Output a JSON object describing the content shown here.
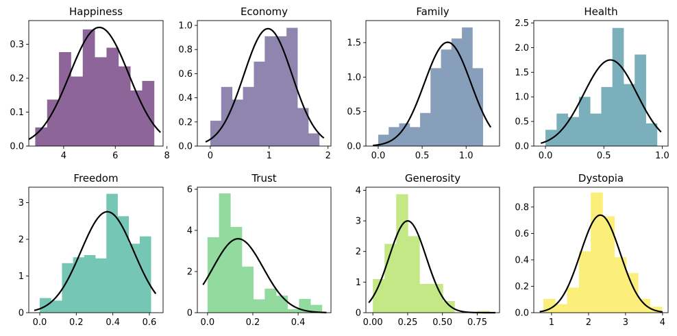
{
  "chart_data": [
    {
      "type": "bar",
      "title": "Happiness",
      "xlim": [
        2.65,
        7.85
      ],
      "ylim": [
        0,
        0.37
      ],
      "xticks": [
        4,
        6,
        8
      ],
      "xtick_labels": [
        "4",
        "6",
        "8"
      ],
      "yticks": [
        0,
        0.1,
        0.2,
        0.3
      ],
      "ytick_labels": [
        "0.0",
        "0.1",
        "0.2",
        "0.3"
      ],
      "bin_edges": [
        2.9,
        3.36,
        3.82,
        4.28,
        4.74,
        5.2,
        5.66,
        6.12,
        6.58,
        7.04,
        7.5
      ],
      "values": [
        0.055,
        0.137,
        0.277,
        0.205,
        0.344,
        0.262,
        0.29,
        0.235,
        0.164,
        0.192
      ],
      "normal_fit": {
        "mean": 5.38,
        "std": 1.14,
        "x_range": [
          2.65,
          7.75
        ]
      },
      "color": "#8e6598"
    },
    {
      "type": "bar",
      "title": "Economy",
      "xlim": [
        -0.22,
        2.05
      ],
      "ylim": [
        0,
        1.04
      ],
      "xticks": [
        0,
        1,
        2
      ],
      "xtick_labels": [
        "0",
        "1",
        "2"
      ],
      "yticks": [
        0,
        0.2,
        0.4,
        0.6,
        0.8,
        1.0
      ],
      "ytick_labels": [
        "0.0",
        "0.2",
        "0.4",
        "0.6",
        "0.8",
        "1.0"
      ],
      "bin_edges": [
        0.0,
        0.185,
        0.37,
        0.555,
        0.74,
        0.925,
        1.11,
        1.295,
        1.48,
        1.665,
        1.85
      ],
      "values": [
        0.21,
        0.49,
        0.385,
        0.49,
        0.7,
        0.91,
        0.91,
        0.98,
        0.315,
        0.105
      ],
      "normal_fit": {
        "mean": 0.98,
        "std": 0.41,
        "x_range": [
          -0.08,
          1.93
        ]
      },
      "color": "#8f86b0"
    },
    {
      "type": "bar",
      "title": "Family",
      "xlim": [
        -0.14,
        1.38
      ],
      "ylim": [
        0,
        1.82
      ],
      "xticks": [
        0,
        0.5,
        1.0
      ],
      "xtick_labels": [
        "0.0",
        "0.5",
        "1.0"
      ],
      "yticks": [
        0,
        0.5,
        1.0,
        1.5
      ],
      "ytick_labels": [
        "0.0",
        "0.5",
        "1.0",
        "1.5"
      ],
      "bin_edges": [
        0.0,
        0.119,
        0.238,
        0.357,
        0.476,
        0.595,
        0.714,
        0.833,
        0.952,
        1.071,
        1.19
      ],
      "values": [
        0.165,
        0.275,
        0.33,
        0.275,
        0.48,
        1.13,
        1.4,
        1.56,
        1.72,
        1.13
      ],
      "normal_fit": {
        "mean": 0.79,
        "std": 0.265,
        "x_range": [
          -0.06,
          1.28
        ]
      },
      "color": "#879fbb"
    },
    {
      "type": "bar",
      "title": "Health",
      "xlim": [
        -0.1,
        1.05
      ],
      "ylim": [
        0,
        2.55
      ],
      "xticks": [
        0,
        0.5,
        1.0
      ],
      "xtick_labels": [
        "0.0",
        "0.5",
        "1.0"
      ],
      "yticks": [
        0,
        0.5,
        1.0,
        1.5,
        2.0,
        2.5
      ],
      "ytick_labels": [
        "0.0",
        "0.5",
        "1.0",
        "1.5",
        "2.0",
        "2.5"
      ],
      "bin_edges": [
        0.0,
        0.0955,
        0.191,
        0.2865,
        0.382,
        0.4775,
        0.573,
        0.6685,
        0.764,
        0.8595,
        0.955
      ],
      "values": [
        0.33,
        0.66,
        0.59,
        1.0,
        0.66,
        1.2,
        2.4,
        1.26,
        1.86,
        0.46
      ],
      "normal_fit": {
        "mean": 0.556,
        "std": 0.228,
        "x_range": [
          -0.04,
          0.99
        ]
      },
      "color": "#7aafbb"
    },
    {
      "type": "bar",
      "title": "Freedom",
      "xlim": [
        -0.06,
        0.675
      ],
      "ylim": [
        0,
        3.42
      ],
      "xticks": [
        0,
        0.2,
        0.4,
        0.6
      ],
      "xtick_labels": [
        "0.0",
        "0.2",
        "0.4",
        "0.6"
      ],
      "yticks": [
        0,
        1,
        2,
        3
      ],
      "ytick_labels": [
        "0",
        "1",
        "2",
        "3"
      ],
      "bin_edges": [
        0.0,
        0.0608,
        0.1216,
        0.1824,
        0.2432,
        0.304,
        0.3648,
        0.4256,
        0.4864,
        0.5472,
        0.608
      ],
      "values": [
        0.4,
        0.33,
        1.35,
        1.51,
        1.57,
        1.48,
        3.24,
        2.63,
        1.88,
        2.08
      ],
      "normal_fit": {
        "mean": 0.37,
        "std": 0.145,
        "x_range": [
          -0.03,
          0.635
        ]
      },
      "color": "#76c6b6"
    },
    {
      "type": "bar",
      "title": "Trust",
      "xlim": [
        -0.045,
        0.545
      ],
      "ylim": [
        0,
        6.1
      ],
      "xticks": [
        0,
        0.2,
        0.4
      ],
      "xtick_labels": [
        "0.0",
        "0.2",
        "0.4"
      ],
      "yticks": [
        0,
        2,
        4,
        6
      ],
      "ytick_labels": [
        "0",
        "2",
        "4",
        "6"
      ],
      "bin_edges": [
        0.0,
        0.0505,
        0.101,
        0.1515,
        0.202,
        0.2525,
        0.303,
        0.3535,
        0.404,
        0.4545,
        0.505
      ],
      "values": [
        3.67,
        5.8,
        4.17,
        2.24,
        0.65,
        1.17,
        0.83,
        0.17,
        0.67,
        0.38
      ],
      "normal_fit": {
        "mean": 0.135,
        "std": 0.111,
        "x_range": [
          -0.02,
          0.525
        ]
      },
      "color": "#92da9e"
    },
    {
      "type": "bar",
      "title": "Generosity",
      "xlim": [
        -0.05,
        0.91
      ],
      "ylim": [
        0,
        4.1
      ],
      "xticks": [
        0,
        0.25,
        0.5,
        0.75
      ],
      "xtick_labels": [
        "0.00",
        "0.25",
        "0.50",
        "0.75"
      ],
      "yticks": [
        0,
        1,
        2,
        3,
        4
      ],
      "ytick_labels": [
        "0",
        "1",
        "2",
        "3",
        "4"
      ],
      "bin_edges": [
        0.0,
        0.0838,
        0.1676,
        0.2514,
        0.3352,
        0.419,
        0.5028,
        0.5866,
        0.6704,
        0.7542,
        0.838
      ],
      "values": [
        1.1,
        2.25,
        3.87,
        2.5,
        0.94,
        0.94,
        0.38,
        0.0,
        0.0,
        0.06
      ],
      "normal_fit": {
        "mean": 0.25,
        "std": 0.133,
        "x_range": [
          -0.03,
          0.88
        ]
      },
      "color": "#c5e886"
    },
    {
      "type": "bar",
      "title": "Dystopia",
      "xlim": [
        0.52,
        4.15
      ],
      "ylim": [
        0,
        0.95
      ],
      "xticks": [
        1,
        2,
        3,
        4
      ],
      "xtick_labels": [
        "1",
        "2",
        "3",
        "4"
      ],
      "yticks": [
        0,
        0.2,
        0.4,
        0.6,
        0.8
      ],
      "ytick_labels": [
        "0.0",
        "0.2",
        "0.4",
        "0.6",
        "0.8"
      ],
      "bin_edges": [
        0.78,
        1.1,
        1.42,
        1.74,
        2.06,
        2.38,
        2.7,
        3.02,
        3.34,
        3.66,
        3.98
      ],
      "values": [
        0.105,
        0.065,
        0.19,
        0.465,
        0.91,
        0.73,
        0.42,
        0.3,
        0.105,
        0.045
      ],
      "normal_fit": {
        "mean": 2.32,
        "std": 0.54,
        "x_range": [
          0.68,
          4.0
        ]
      },
      "color": "#fcee7a"
    }
  ]
}
